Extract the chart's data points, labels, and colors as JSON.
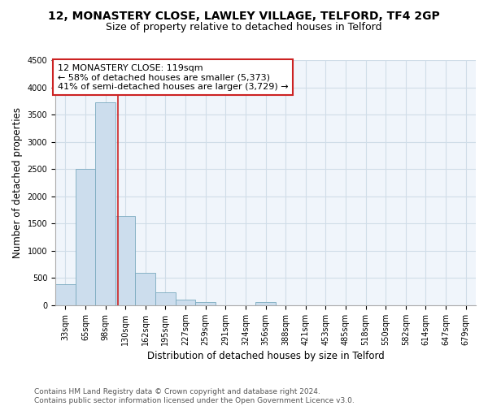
{
  "title": "12, MONASTERY CLOSE, LAWLEY VILLAGE, TELFORD, TF4 2GP",
  "subtitle": "Size of property relative to detached houses in Telford",
  "xlabel": "Distribution of detached houses by size in Telford",
  "ylabel": "Number of detached properties",
  "categories": [
    "33sqm",
    "65sqm",
    "98sqm",
    "130sqm",
    "162sqm",
    "195sqm",
    "227sqm",
    "259sqm",
    "291sqm",
    "324sqm",
    "356sqm",
    "388sqm",
    "421sqm",
    "453sqm",
    "485sqm",
    "518sqm",
    "550sqm",
    "582sqm",
    "614sqm",
    "647sqm",
    "679sqm"
  ],
  "values": [
    380,
    2500,
    3720,
    1640,
    600,
    240,
    100,
    60,
    0,
    0,
    60,
    0,
    0,
    0,
    0,
    0,
    0,
    0,
    0,
    0,
    0
  ],
  "bar_color": "#ccdded",
  "bar_edge_color": "#7aaabf",
  "line_x_index": 2.63,
  "annotation_line1": "12 MONASTERY CLOSE: 119sqm",
  "annotation_line2": "← 58% of detached houses are smaller (5,373)",
  "annotation_line3": "41% of semi-detached houses are larger (3,729) →",
  "box_facecolor": "white",
  "box_edge_color": "#cc2222",
  "vline_color": "#cc2222",
  "ylim": [
    0,
    4500
  ],
  "yticks": [
    0,
    500,
    1000,
    1500,
    2000,
    2500,
    3000,
    3500,
    4000,
    4500
  ],
  "footer_line1": "Contains HM Land Registry data © Crown copyright and database right 2024.",
  "footer_line2": "Contains public sector information licensed under the Open Government Licence v3.0.",
  "title_fontsize": 10,
  "subtitle_fontsize": 9,
  "axis_label_fontsize": 8.5,
  "tick_fontsize": 7,
  "annotation_fontsize": 8,
  "footer_fontsize": 6.5
}
